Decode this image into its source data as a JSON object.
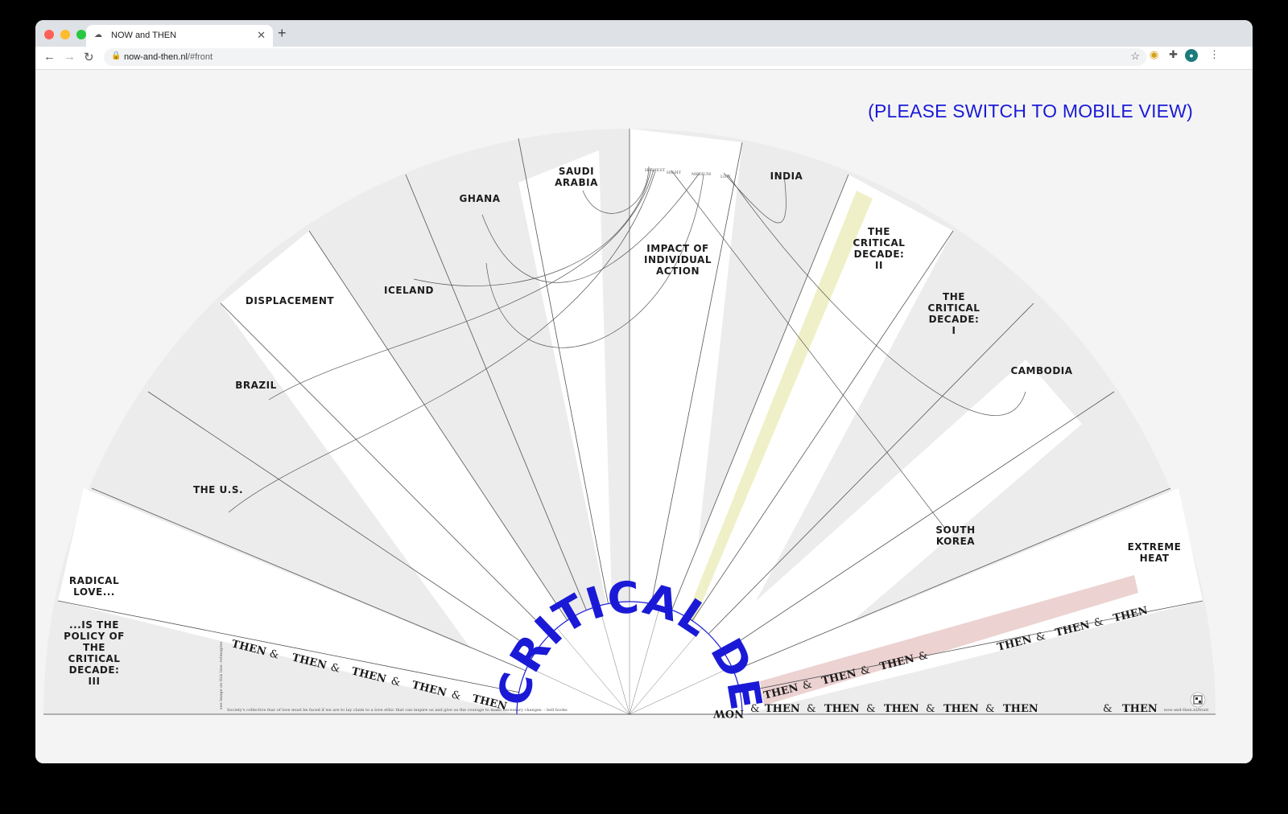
{
  "browser": {
    "tab_title": "NOW and THEN",
    "url_host": "now-and-then.nl",
    "url_path": "/#front"
  },
  "page": {
    "notice": "(PLEASE SWITCH TO MOBILE VIEW)",
    "center_title": "CRITICAL DECADE",
    "labels": {
      "saudi": "SAUDI ARABIA",
      "ghana": "GHANA",
      "india": "INDIA",
      "impact": "IMPACT OF INDIVIDUAL ACTION",
      "iceland": "ICELAND",
      "displacement": "DISPLACEMENT",
      "crit2": "THE CRITICAL DECADE: II",
      "crit1": "THE CRITICAL DECADE: I",
      "brazil": "BRAZIL",
      "cambodia": "CAMBODIA",
      "us": "THE U.S.",
      "south_korea": "SOUTH KOREA",
      "extreme_heat": "EXTREME HEAT",
      "radical_love": "RADICAL LOVE...",
      "policy": "...IS THE POLICY OF THE CRITICAL DECADE: III"
    },
    "emission_scale": [
      "HIGHEST",
      "HIGHT",
      "MEDIUM",
      "LOW"
    ],
    "then_word": "THEN",
    "amp": "&",
    "now_word": "NOW",
    "quote": "Society's collective fear of love must be faced if we are to lay claim to a love ethic that can inspire us and give us the courage to make necessary changes. - bell hooks",
    "footer_right": "now-and-then.nl/front",
    "bottom_link": "see image on this line: reimagine"
  }
}
